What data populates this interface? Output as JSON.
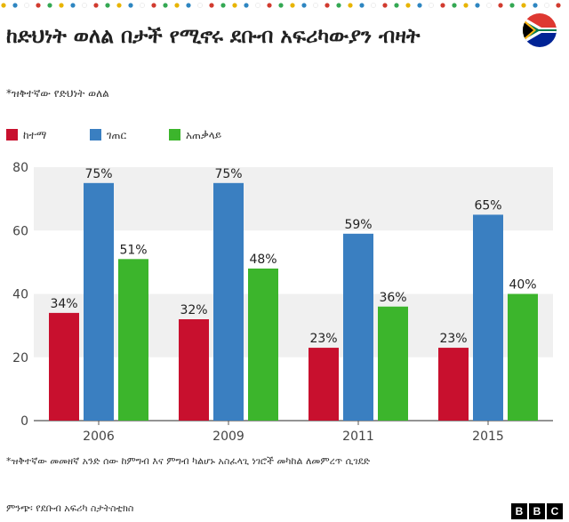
{
  "header": {
    "title": "ከድህነት ወለል በታች የሚኖሩ ደቡብ አፍሪካውያን ብዛት",
    "subtitle": "*ዝቅተኛው የድህነት ወለል",
    "flag_icon": "south-africa-flag-icon",
    "dot_colors": [
      "#e8b400",
      "#2e86c1",
      "#ffffff",
      "#d13b2f",
      "#34a853"
    ]
  },
  "legend": [
    {
      "label": "ከተማ",
      "color": "#c8102e"
    },
    {
      "label": "ገጠር",
      "color": "#3a7fc1"
    },
    {
      "label": "አጠቃላይ",
      "color": "#3cb52c"
    }
  ],
  "chart_data": {
    "type": "bar",
    "title": "ከድህነት ወለል በታች የሚኖሩ ደቡብ አፍሪካውያን ብዛት",
    "categories": [
      "2006",
      "2009",
      "2011",
      "2015"
    ],
    "series": [
      {
        "name": "ከተማ",
        "values": [
          34,
          32,
          23,
          23
        ],
        "color": "#c8102e"
      },
      {
        "name": "ገጠር",
        "values": [
          75,
          75,
          59,
          65
        ],
        "color": "#3a7fc1"
      },
      {
        "name": "አጠቃላይ",
        "values": [
          51,
          48,
          36,
          40
        ],
        "color": "#3cb52c"
      }
    ],
    "data_labels": [
      [
        "34%",
        "75%",
        "51%"
      ],
      [
        "32%",
        "75%",
        "48%"
      ],
      [
        "23%",
        "59%",
        "36%"
      ],
      [
        "23%",
        "65%",
        "40%"
      ]
    ],
    "yticks": [
      "0",
      "20",
      "40",
      "60",
      "80"
    ],
    "ylim": [
      0,
      80
    ],
    "xlabel": "",
    "ylabel": ""
  },
  "footer": {
    "footnote": "*ዝቅተኛው መመዘኛ አንድ ሰው ከምግብ እና ምግብ ካልሆኑ አስፈላጊ ነገሮች መካከል ለመምረጥ ሲገደድ",
    "source": "ምንጭ፡ የደቡብ አፍሪካ ስታትስቲክስ",
    "logo": [
      "B",
      "B",
      "C"
    ]
  }
}
